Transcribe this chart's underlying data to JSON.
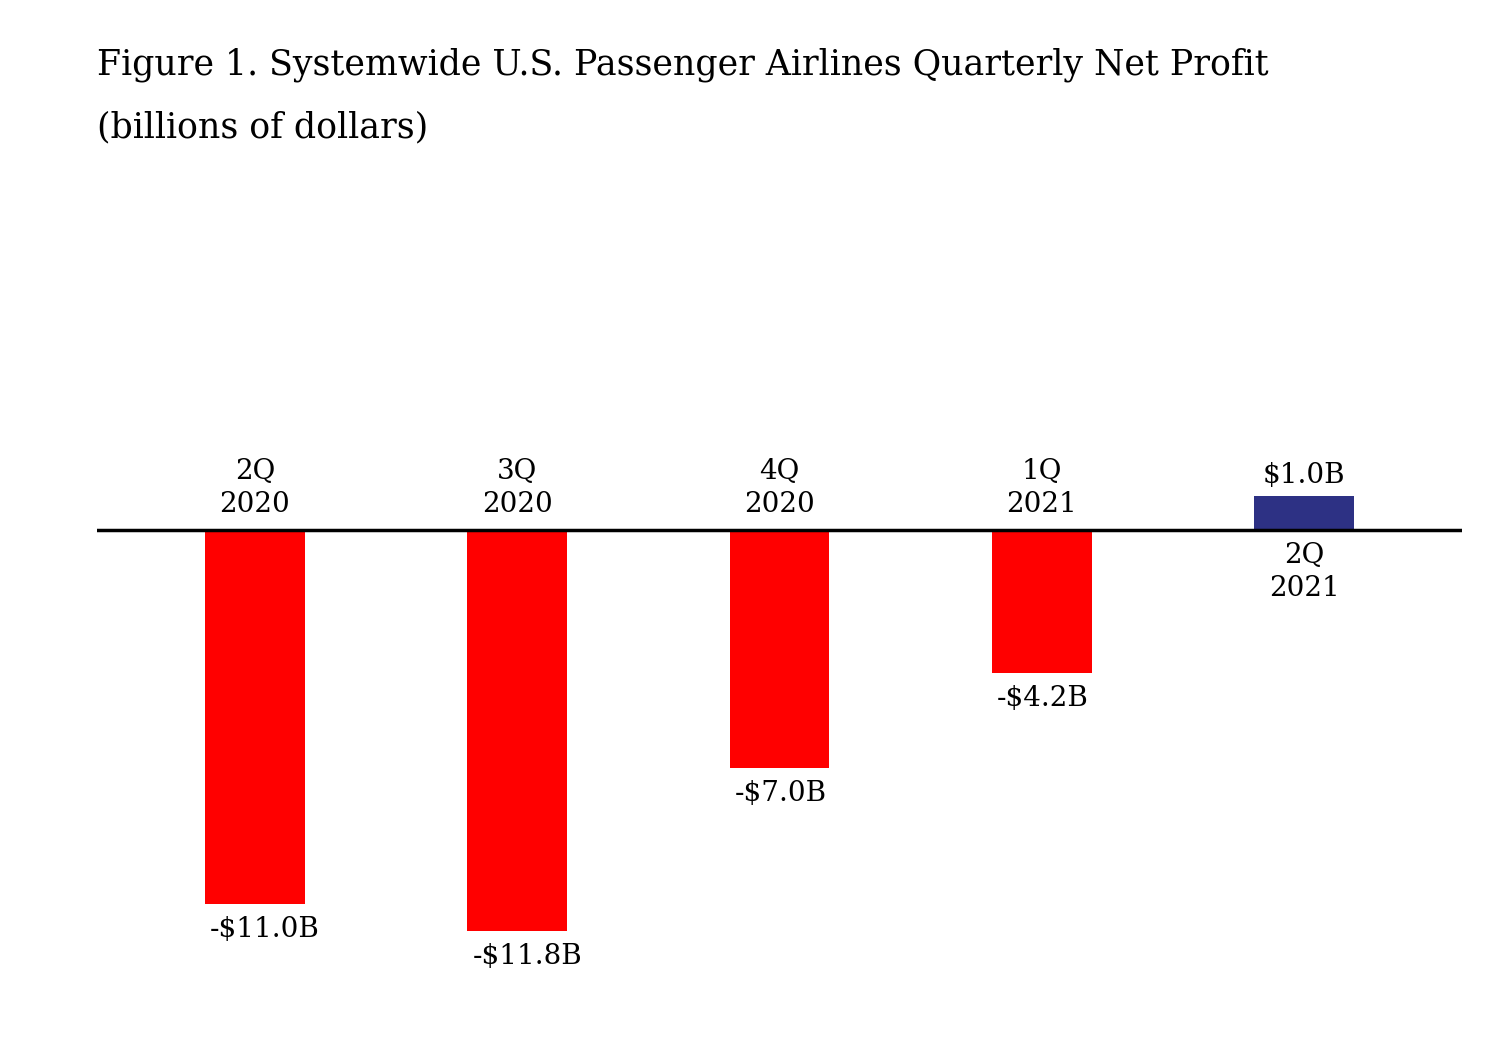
{
  "title_line1": "Figure 1. Systemwide U.S. Passenger Airlines Quarterly Net Profit",
  "title_line2": "(billions of dollars)",
  "categories": [
    "2Q\n2020",
    "3Q\n2020",
    "4Q\n2020",
    "1Q\n2021",
    "2Q\n2021"
  ],
  "values": [
    -11.0,
    -11.8,
    -7.0,
    -4.2,
    1.0
  ],
  "bar_colors": [
    "#ff0000",
    "#ff0000",
    "#ff0000",
    "#ff0000",
    "#2d3184"
  ],
  "value_labels": [
    "-$11.0B",
    "-$11.8B",
    "-$7.0B",
    "-$4.2B",
    "$1.0B"
  ],
  "ylim": [
    -14.0,
    4.5
  ],
  "background_color": "#ffffff",
  "title_fontsize": 25,
  "label_fontsize": 20,
  "cat_fontsize": 20,
  "bar_width": 0.38
}
